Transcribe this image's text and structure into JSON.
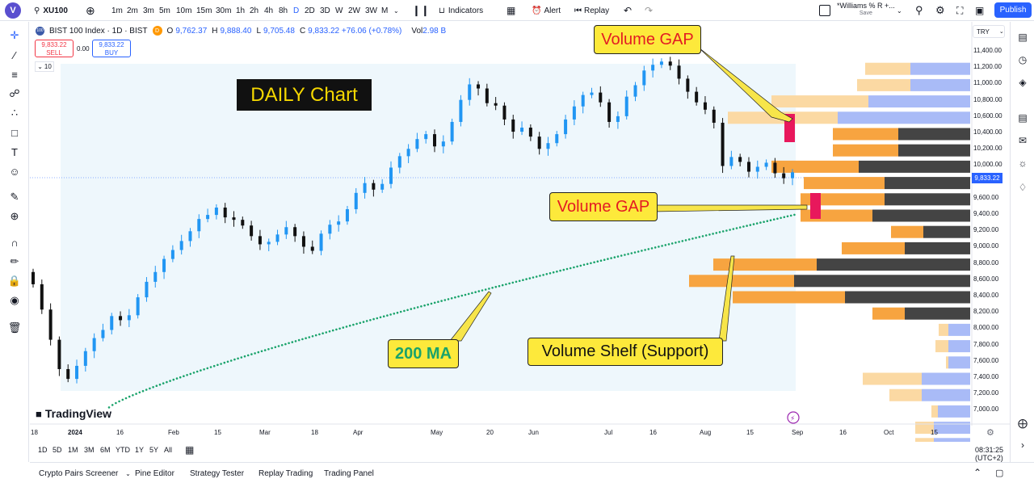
{
  "top_toolbar": {
    "avatar_letter": "V",
    "symbol": "XU100",
    "intervals": [
      "1m",
      "2m",
      "3m",
      "5m",
      "10m",
      "15m",
      "30m",
      "1h",
      "2h",
      "4h",
      "8h",
      "D",
      "2D",
      "3D",
      "W",
      "2W",
      "3W",
      "M"
    ],
    "active_interval": "D",
    "indicators_label": "Indicators",
    "alert_label": "Alert",
    "replay_label": "Replay",
    "layout_name": "*Williams % R +...",
    "layout_save": "Save",
    "publish_label": "Publish"
  },
  "legend": {
    "badge": "100",
    "title": "BIST 100 Index · 1D · BIST",
    "status_badge": "D",
    "ohlc": [
      {
        "k": "O",
        "v": "9,762.37"
      },
      {
        "k": "H",
        "v": "9,888.40"
      },
      {
        "k": "L",
        "v": "9,705.48"
      },
      {
        "k": "C",
        "v": "9,833.22 +76.06 (+0.78%)"
      }
    ],
    "volume_label": "Vol",
    "volume_value": "2.98 B",
    "sell_price": "9,833.22",
    "sell_label": "SELL",
    "spread": "0.00",
    "buy_price": "9,833.22",
    "buy_label": "BUY",
    "vp_rows": "10"
  },
  "annotations": {
    "daily_chart": "DAILY Chart",
    "volume_gap_top": "Volume GAP",
    "volume_gap_mid": "Volume GAP",
    "ma_200": "200 MA",
    "volume_shelf": "Volume Shelf (Support)"
  },
  "brand": "TradingView",
  "price_scale": {
    "currency": "TRY",
    "current_price": "9,833.22",
    "labels": [
      "11,400.00",
      "11,200.00",
      "11,000.00",
      "10,800.00",
      "10,600.00",
      "10,400.00",
      "10,200.00",
      "10,000.00",
      "9,600.00",
      "9,400.00",
      "9,200.00",
      "9,000.00",
      "8,800.00",
      "8,600.00",
      "8,400.00",
      "8,200.00",
      "8,000.00",
      "7,800.00",
      "7,600.00",
      "7,400.00",
      "7,200.00",
      "7,000.00"
    ]
  },
  "time_axis": [
    "18",
    "2024",
    "16",
    "Feb",
    "15",
    "Mar",
    "18",
    "Apr",
    "May",
    "20",
    "Jun",
    "Jul",
    "16",
    "Aug",
    "15",
    "Sep",
    "16",
    "Oct",
    "15"
  ],
  "ranges": [
    "1D",
    "5D",
    "1M",
    "3M",
    "6M",
    "YTD",
    "1Y",
    "5Y",
    "All"
  ],
  "clock": "08:31:25 (UTC+2)",
  "bottom_tabs": [
    "Crypto Pairs Screener",
    "Pine Editor",
    "Strategy Tester",
    "Replay Trading",
    "Trading Panel"
  ],
  "colors": {
    "accent": "#2962ff",
    "bull": "#2196f3",
    "bear": "#111111",
    "ma": "#1aa36b",
    "vp_up": "#f7a440",
    "vp_down": "#444444",
    "vp_up_light": "#fbd9a3",
    "vp_down_light": "#a9bbf7",
    "gap": "#e8185c",
    "callout_bg": "#fde93b"
  },
  "chart_data": {
    "type": "candlestick",
    "series_close": [
      8460,
      8150,
      7780,
      7420,
      7300,
      7460,
      7640,
      7800,
      7900,
      8070,
      8020,
      8080,
      8300,
      8490,
      8610,
      8770,
      8880,
      8990,
      9110,
      9260,
      9310,
      9400,
      9280,
      9250,
      9180,
      9050,
      8950,
      8980,
      9070,
      9160,
      9050,
      8920,
      8870,
      9080,
      9190,
      9230,
      9380,
      9580,
      9700,
      9620,
      9690,
      9890,
      10030,
      10120,
      10240,
      10300,
      10150,
      10210,
      10450,
      10720,
      10910,
      10860,
      10680,
      10650,
      10480,
      10330,
      10380,
      10270,
      10120,
      10190,
      10300,
      10480,
      10640,
      10780,
      10810,
      10690,
      10450,
      10520,
      10760,
      10900,
      11080,
      11150,
      11190,
      11140,
      10980,
      10820,
      10690,
      10600,
      10440,
      9910,
      10020,
      9960,
      9840,
      9900,
      9950,
      9820,
      9760,
      9833
    ],
    "ma_200": {
      "start": 6950,
      "end": 9320
    },
    "volume_profile_levels": [
      11400,
      11200,
      11000,
      10800,
      10600,
      10400,
      10200,
      10000,
      9800,
      9600,
      9400,
      9200,
      9000,
      8800,
      8600,
      8400,
      8200,
      8000,
      7800,
      7600,
      7400,
      7200
    ],
    "ylim": [
      6900,
      11500
    ]
  }
}
